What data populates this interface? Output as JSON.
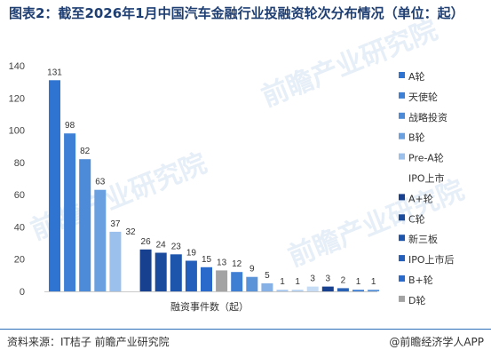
{
  "title": "图表2：截至2026年1月中国汽车金融行业投融资轮次分布情况（单位：起）",
  "footer": {
    "source": "资料来源：IT桔子 前瞻产业研究院",
    "brand": "@前瞻经济学人APP"
  },
  "watermark": "前瞻产业研究院",
  "chart_data": {
    "type": "bar",
    "xlabel": "融资事件数（起）",
    "ylabel": "",
    "ylim": [
      0,
      140
    ],
    "yticks": [
      0,
      20,
      40,
      60,
      80,
      100,
      120,
      140
    ],
    "grid": false,
    "legend_position": "right",
    "series": [
      {
        "name": "A轮",
        "value": 131,
        "color": "#2e74d0"
      },
      {
        "name": "天使轮",
        "value": 98,
        "color": "#3d80d6"
      },
      {
        "name": "战略投资",
        "value": 82,
        "color": "#4d8bd9"
      },
      {
        "name": "B轮",
        "value": 63,
        "color": "#6a9fe0"
      },
      {
        "name": "Pre-A轮",
        "value": 37,
        "color": "#9cc0ec"
      },
      {
        "name": "IPO上市",
        "value": 32,
        "color": "#ffffff"
      },
      {
        "name": "A+轮",
        "value": 26,
        "color": "#17418e"
      },
      {
        "name": "C轮",
        "value": 24,
        "color": "#1b4b9c"
      },
      {
        "name": "新三板",
        "value": 23,
        "color": "#1e55ac"
      },
      {
        "name": "IPO上市后",
        "value": 19,
        "color": "#235fbb"
      },
      {
        "name": "B+轮",
        "value": 15,
        "color": "#2a6acb"
      },
      {
        "name": "D轮",
        "value": 13,
        "color": "#a3a3a3"
      },
      {
        "name": "",
        "value": 12,
        "color": "#3f7fd3"
      },
      {
        "name": "",
        "value": 9,
        "color": "#5b93d9"
      },
      {
        "name": "",
        "value": 5,
        "color": "#86b1e6"
      },
      {
        "name": "",
        "value": 1,
        "color": "#a9c8ef"
      },
      {
        "name": "",
        "value": 1,
        "color": "#b8d2f2"
      },
      {
        "name": "",
        "value": 3,
        "color": "#c6dbf4"
      },
      {
        "name": "",
        "value": 3,
        "color": "#17418e"
      },
      {
        "name": "",
        "value": 2,
        "color": "#2a62b5"
      },
      {
        "name": "",
        "value": 1,
        "color": "#3f7fd3"
      },
      {
        "name": "",
        "value": 1,
        "color": "#5b93d9"
      }
    ]
  }
}
